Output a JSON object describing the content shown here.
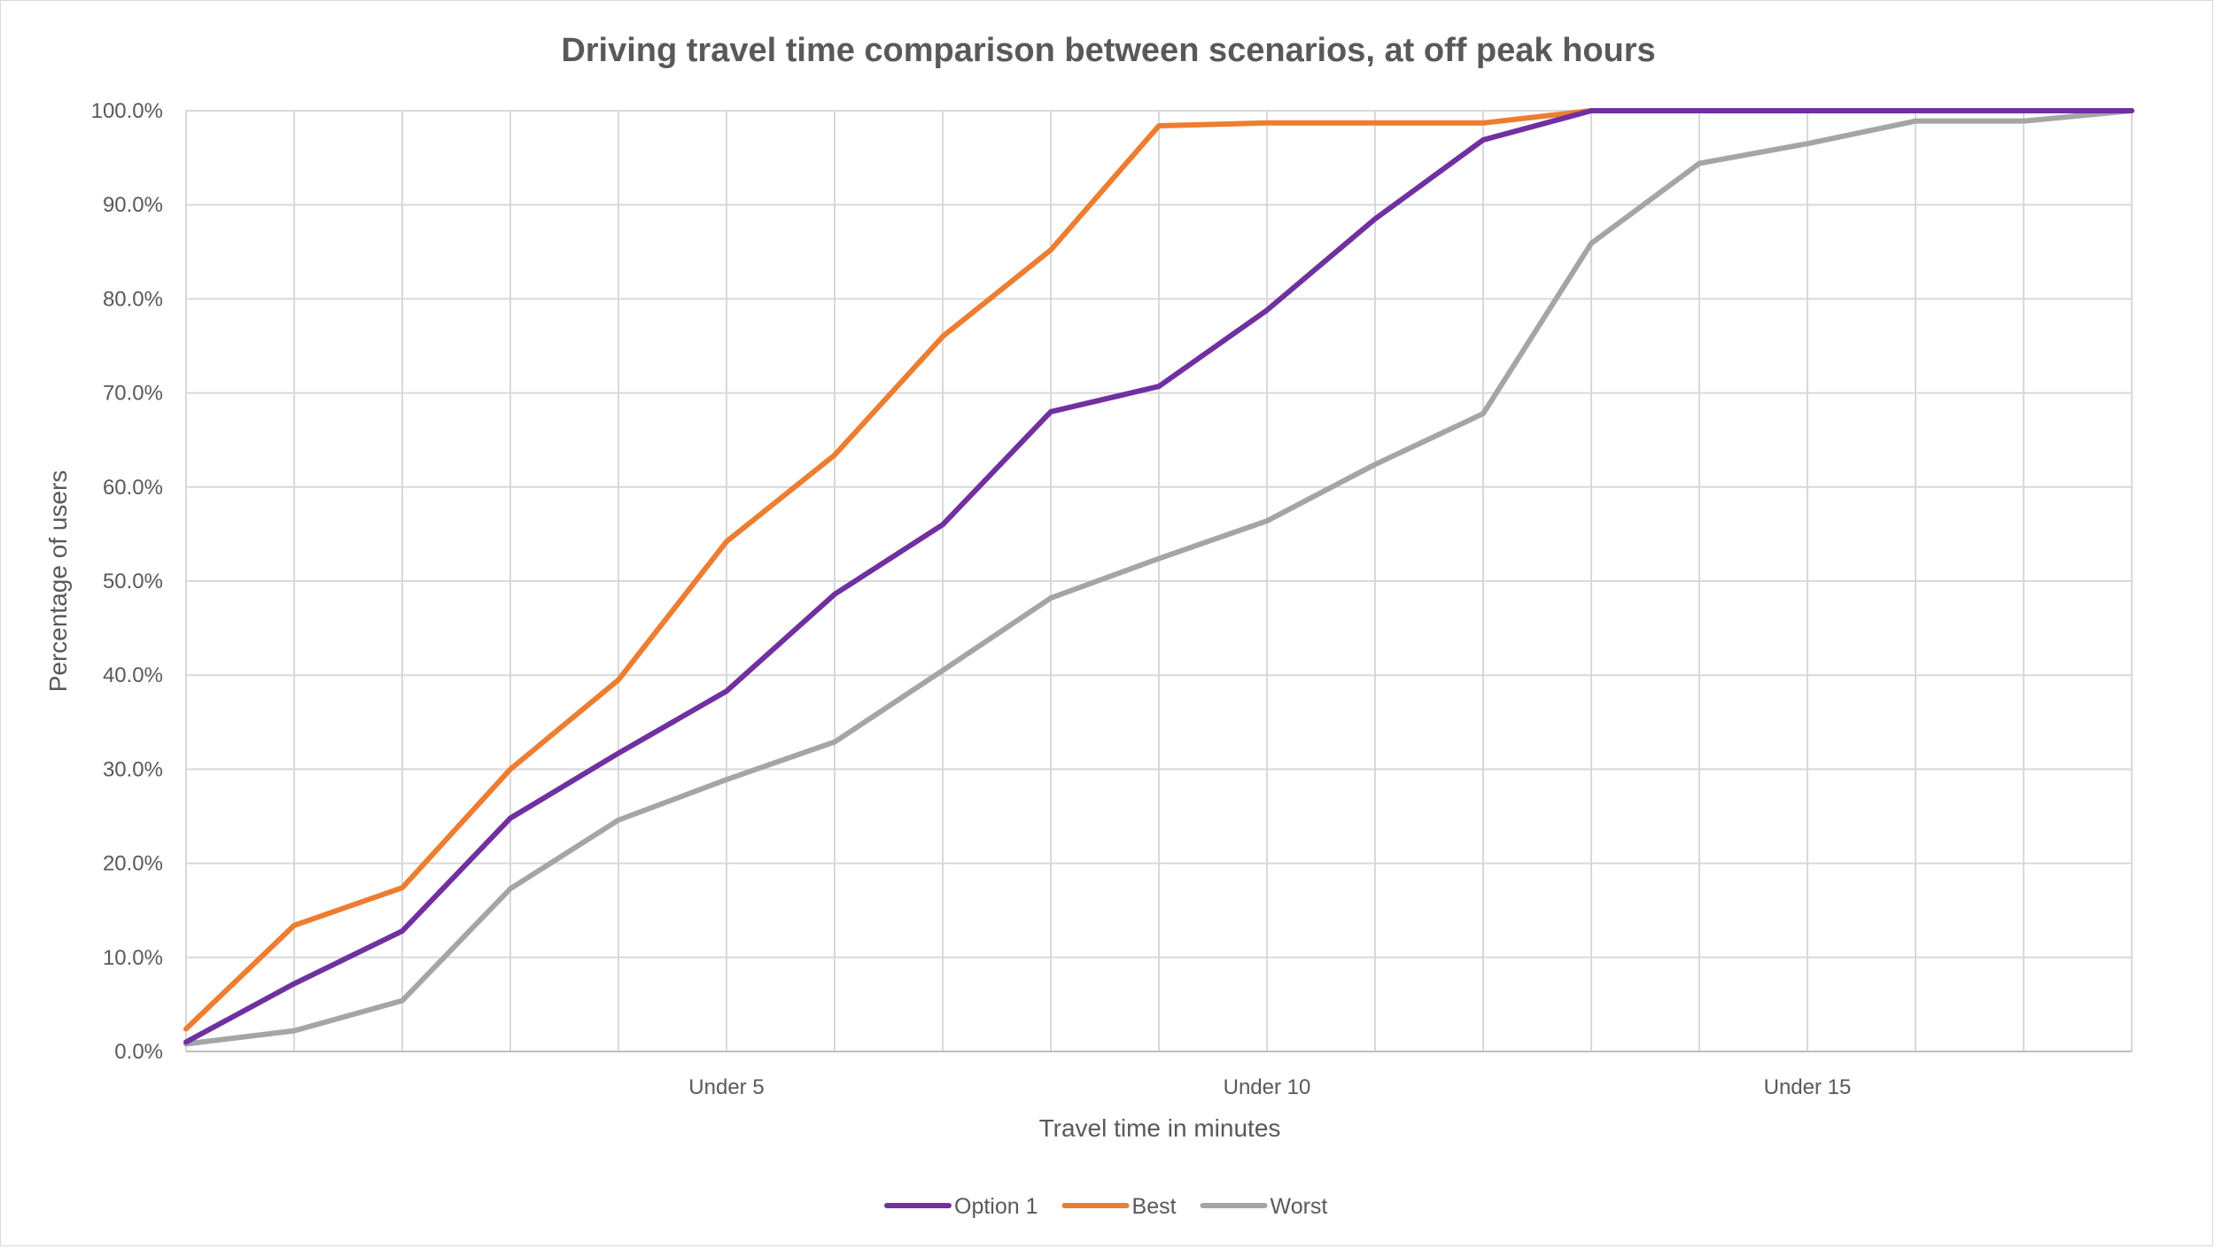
{
  "chart_data": {
    "type": "line",
    "title": "Driving travel time comparison between scenarios, at off peak hours",
    "xlabel": "Travel time in minutes",
    "ylabel": "Percentage of users",
    "ylim": [
      0,
      100
    ],
    "y_ticks": [
      "0.0%",
      "10.0%",
      "20.0%",
      "30.0%",
      "40.0%",
      "50.0%",
      "60.0%",
      "70.0%",
      "80.0%",
      "90.0%",
      "100.0%"
    ],
    "x": [
      0,
      1,
      2,
      3,
      4,
      5,
      6,
      7,
      8,
      9,
      10,
      11,
      12,
      13,
      14,
      15,
      16,
      17,
      18
    ],
    "x_tick_labels": [
      {
        "x": 5,
        "label": "Under 5"
      },
      {
        "x": 10,
        "label": "Under 10"
      },
      {
        "x": 15,
        "label": "Under 15"
      }
    ],
    "grid": true,
    "legend_position": "bottom",
    "series": [
      {
        "name": "Option 1",
        "color": "#7030a0",
        "values": [
          1.0,
          7.2,
          12.8,
          24.8,
          31.7,
          38.3,
          48.6,
          56.0,
          68.0,
          70.7,
          78.8,
          88.5,
          96.9,
          100.0,
          100.0,
          100.0,
          100.0,
          100.0,
          100.0
        ]
      },
      {
        "name": "Best",
        "color": "#ed7d31",
        "values": [
          2.4,
          13.4,
          17.4,
          30.0,
          39.5,
          54.2,
          63.4,
          76.0,
          85.2,
          98.4,
          98.7,
          98.7,
          98.7,
          100.0,
          100.0,
          100.0,
          100.0,
          100.0,
          100.0
        ]
      },
      {
        "name": "Worst",
        "color": "#a5a5a5",
        "values": [
          0.8,
          2.2,
          5.4,
          17.3,
          24.6,
          28.9,
          32.9,
          40.5,
          48.2,
          52.4,
          56.4,
          62.4,
          67.8,
          85.9,
          94.4,
          96.5,
          98.9,
          98.9,
          100.0
        ]
      }
    ]
  }
}
